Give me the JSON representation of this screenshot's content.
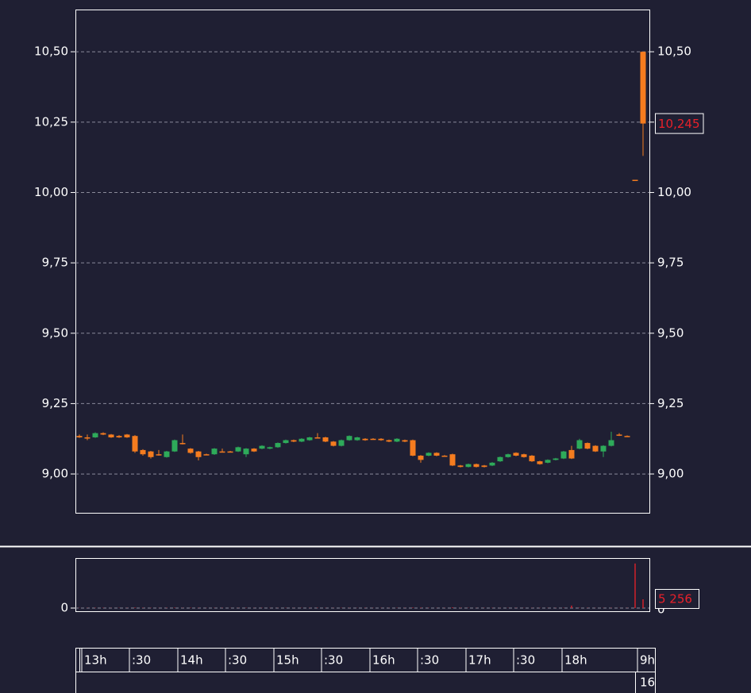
{
  "chart_data": [
    {
      "type": "candlestick",
      "colors": {
        "up": "#2eaa5a",
        "down": "#f57c1f"
      },
      "open": [
        9.135,
        9.13,
        9.13,
        9.145,
        9.14,
        9.135,
        9.14,
        9.135,
        9.085,
        9.08,
        9.07,
        9.06,
        9.08,
        9.11,
        9.09,
        9.08,
        9.07,
        9.07,
        9.08,
        9.08,
        9.08,
        9.07,
        9.09,
        9.09,
        9.09,
        9.095,
        9.11,
        9.12,
        9.115,
        9.12,
        9.13,
        9.13,
        9.115,
        9.1,
        9.12,
        9.12,
        9.125,
        9.125,
        9.125,
        9.12,
        9.115,
        9.12,
        9.12,
        9.065,
        9.065,
        9.075,
        9.065,
        9.07,
        9.03,
        9.025,
        9.035,
        9.03,
        9.03,
        9.045,
        9.06,
        9.075,
        9.07,
        9.065,
        9.045,
        9.04,
        9.05,
        9.055,
        9.085,
        9.09,
        9.11,
        9.1,
        9.08,
        9.1,
        9.14,
        9.135,
        10.045,
        10.5
      ],
      "high": [
        9.14,
        9.14,
        9.148,
        9.148,
        9.142,
        9.138,
        9.142,
        9.138,
        9.088,
        9.082,
        9.085,
        9.082,
        9.122,
        9.14,
        9.092,
        9.082,
        9.072,
        9.092,
        9.09,
        9.082,
        9.097,
        9.092,
        9.092,
        9.102,
        9.097,
        9.112,
        9.122,
        9.122,
        9.127,
        9.132,
        9.145,
        9.132,
        9.117,
        9.122,
        9.137,
        9.132,
        9.127,
        9.127,
        9.127,
        9.122,
        9.127,
        9.122,
        9.122,
        9.067,
        9.077,
        9.077,
        9.067,
        9.072,
        9.032,
        9.037,
        9.037,
        9.032,
        9.042,
        9.062,
        9.072,
        9.077,
        9.072,
        9.067,
        9.047,
        9.052,
        9.057,
        9.082,
        9.1,
        9.125,
        9.112,
        9.102,
        9.102,
        9.15,
        9.145,
        9.137,
        10.045,
        10.5
      ],
      "low": [
        9.128,
        9.12,
        9.128,
        9.138,
        9.128,
        9.128,
        9.128,
        9.075,
        9.065,
        9.055,
        9.065,
        9.058,
        9.078,
        9.105,
        9.072,
        9.048,
        9.068,
        9.068,
        9.078,
        9.078,
        9.078,
        9.06,
        9.078,
        9.088,
        9.088,
        9.093,
        9.108,
        9.113,
        9.113,
        9.118,
        9.128,
        9.113,
        9.098,
        9.098,
        9.118,
        9.118,
        9.118,
        9.122,
        9.118,
        9.113,
        9.113,
        9.113,
        9.063,
        9.04,
        9.063,
        9.063,
        9.063,
        9.028,
        9.023,
        9.023,
        9.023,
        9.023,
        9.028,
        9.043,
        9.058,
        9.063,
        9.058,
        9.043,
        9.033,
        9.038,
        9.048,
        9.053,
        9.053,
        9.088,
        9.088,
        9.078,
        9.06,
        9.098,
        9.135,
        9.133,
        10.045,
        10.13
      ],
      "close": [
        9.13,
        9.13,
        9.145,
        9.14,
        9.13,
        9.13,
        9.13,
        9.08,
        9.07,
        9.06,
        9.07,
        9.08,
        9.12,
        9.11,
        9.075,
        9.06,
        9.07,
        9.09,
        9.08,
        9.08,
        9.095,
        9.09,
        9.08,
        9.1,
        9.095,
        9.11,
        9.12,
        9.115,
        9.125,
        9.13,
        9.13,
        9.115,
        9.1,
        9.12,
        9.135,
        9.13,
        9.12,
        9.125,
        9.12,
        9.115,
        9.125,
        9.115,
        9.065,
        9.05,
        9.075,
        9.065,
        9.065,
        9.03,
        9.025,
        9.035,
        9.025,
        9.025,
        9.04,
        9.06,
        9.07,
        9.065,
        9.06,
        9.045,
        9.035,
        9.05,
        9.055,
        9.08,
        9.055,
        9.12,
        9.09,
        9.08,
        9.1,
        9.12,
        9.14,
        9.135,
        10.045,
        10.245
      ],
      "xlim": [
        -0.5,
        71.8
      ],
      "ylim": [
        8.862,
        10.65
      ],
      "yticks": [
        {
          "value": 9.0,
          "label": "9,00"
        },
        {
          "value": 9.25,
          "label": "9,25"
        },
        {
          "value": 9.5,
          "label": "9,50"
        },
        {
          "value": 9.75,
          "label": "9,75"
        },
        {
          "value": 10.0,
          "label": "10,00"
        },
        {
          "value": 10.25,
          "label": "10,25"
        },
        {
          "value": 10.5,
          "label": "10,50"
        }
      ],
      "grid": true,
      "last_price": {
        "value": 10.245,
        "label": "10,245"
      },
      "xticks": [
        {
          "value": 0.3,
          "label": "13h"
        },
        {
          "value": 6.3,
          "label": ":30"
        },
        {
          "value": 12.4,
          "label": "14h"
        },
        {
          "value": 18.4,
          "label": ":30"
        },
        {
          "value": 24.5,
          "label": "15h"
        },
        {
          "value": 30.5,
          "label": ":30"
        },
        {
          "value": 36.6,
          "label": "16h"
        },
        {
          "value": 42.6,
          "label": ":30"
        },
        {
          "value": 48.7,
          "label": "17h"
        },
        {
          "value": 54.7,
          "label": ":30"
        },
        {
          "value": 60.8,
          "label": "18h"
        },
        {
          "value": 70.3,
          "label": "9h"
        }
      ],
      "date_label": "16"
    },
    {
      "type": "bar",
      "color": "#d0202a",
      "values": [
        150,
        120,
        200,
        180,
        100,
        150,
        120,
        300,
        200,
        150,
        100,
        180,
        250,
        120,
        200,
        150,
        100,
        120,
        150,
        100,
        120,
        180,
        100,
        150,
        120,
        100,
        150,
        100,
        120,
        150,
        200,
        120,
        100,
        150,
        120,
        100,
        150,
        100,
        120,
        100,
        150,
        120,
        300,
        250,
        150,
        100,
        120,
        400,
        200,
        150,
        100,
        120,
        150,
        100,
        120,
        150,
        100,
        120,
        150,
        100,
        120,
        150,
        1500,
        200,
        150,
        100,
        120,
        150,
        100,
        120,
        26800,
        5256
      ],
      "ylim": [
        -1910,
        30080
      ],
      "yticks": [
        0
      ],
      "last_volume": {
        "value": 5256,
        "label": "5 256"
      }
    }
  ]
}
